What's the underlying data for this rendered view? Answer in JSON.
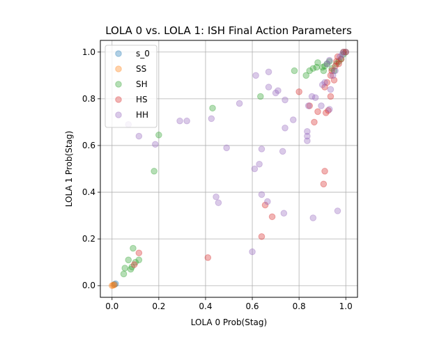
{
  "chart_data": {
    "type": "scatter",
    "title": "LOLA 0 vs. LOLA 1: ISH Final Action Parameters",
    "xlabel": "LOLA 0 Prob(Stag)",
    "ylabel": "LOLA 1 Prob(Stag)",
    "xlim": [
      -0.05,
      1.05
    ],
    "ylim": [
      -0.05,
      1.05
    ],
    "xticks": [
      0.0,
      0.2,
      0.4,
      0.6,
      0.8,
      1.0
    ],
    "yticks": [
      0.0,
      0.2,
      0.4,
      0.6,
      0.8,
      1.0
    ],
    "xtick_labels": [
      "0.0",
      "0.2",
      "0.4",
      "0.6",
      "0.8",
      "1.0"
    ],
    "ytick_labels": [
      "0.0",
      "0.2",
      "0.4",
      "0.6",
      "0.8",
      "1.0"
    ],
    "grid": true,
    "legend_position": "upper-left",
    "series": [
      {
        "name": "s_0",
        "color": "#1f77b4",
        "points": [
          [
            0.01,
            0.005
          ],
          [
            0.015,
            0.008
          ],
          [
            0.99,
            1.0
          ],
          [
            1.0,
            1.0
          ]
        ]
      },
      {
        "name": "SS",
        "color": "#ff7f0e",
        "points": [
          [
            0.0,
            0.0
          ],
          [
            0.005,
            0.002
          ],
          [
            0.01,
            0.004
          ]
        ]
      },
      {
        "name": "SH",
        "color": "#2ca02c",
        "points": [
          [
            0.05,
            0.05
          ],
          [
            0.055,
            0.075
          ],
          [
            0.07,
            0.11
          ],
          [
            0.08,
            0.07
          ],
          [
            0.085,
            0.08
          ],
          [
            0.09,
            0.16
          ],
          [
            0.1,
            0.1
          ],
          [
            0.115,
            0.11
          ],
          [
            0.18,
            0.49
          ],
          [
            0.2,
            0.645
          ],
          [
            0.43,
            0.76
          ],
          [
            0.635,
            0.81
          ],
          [
            0.78,
            0.92
          ],
          [
            0.83,
            0.9
          ],
          [
            0.845,
            0.92
          ],
          [
            0.86,
            0.93
          ],
          [
            0.875,
            0.935
          ],
          [
            0.88,
            0.955
          ],
          [
            0.9,
            0.935
          ],
          [
            0.905,
            0.92
          ],
          [
            0.91,
            0.94
          ],
          [
            0.92,
            0.95
          ],
          [
            0.93,
            0.96
          ],
          [
            0.94,
            0.93
          ],
          [
            0.95,
            0.92
          ],
          [
            0.96,
            0.95
          ],
          [
            0.97,
            0.96
          ],
          [
            0.98,
            0.97
          ],
          [
            0.99,
            0.99
          ]
        ]
      },
      {
        "name": "HS",
        "color": "#d62728",
        "points": [
          [
            0.095,
            0.09
          ],
          [
            0.115,
            0.14
          ],
          [
            0.41,
            0.12
          ],
          [
            0.64,
            0.21
          ],
          [
            0.655,
            0.345
          ],
          [
            0.685,
            0.295
          ],
          [
            0.8,
            0.83
          ],
          [
            0.845,
            0.77
          ],
          [
            0.865,
            0.7
          ],
          [
            0.88,
            0.745
          ],
          [
            0.905,
            0.435
          ],
          [
            0.91,
            0.49
          ],
          [
            0.91,
            0.85
          ],
          [
            0.915,
            0.74
          ],
          [
            0.92,
            0.87
          ],
          [
            0.925,
            0.75
          ],
          [
            0.935,
            0.81
          ],
          [
            0.935,
            0.9
          ],
          [
            0.94,
            0.92
          ],
          [
            0.95,
            0.88
          ],
          [
            0.955,
            0.94
          ],
          [
            0.96,
            0.96
          ],
          [
            0.965,
            0.98
          ],
          [
            0.97,
            0.95
          ],
          [
            0.98,
            0.97
          ],
          [
            0.99,
            1.0
          ],
          [
            1.0,
            1.0
          ]
        ]
      },
      {
        "name": "HH",
        "color": "#9467bd",
        "points": [
          [
            0.07,
            0.69
          ],
          [
            0.115,
            0.64
          ],
          [
            0.185,
            0.605
          ],
          [
            0.29,
            0.705
          ],
          [
            0.32,
            0.705
          ],
          [
            0.425,
            0.715
          ],
          [
            0.445,
            0.38
          ],
          [
            0.455,
            0.355
          ],
          [
            0.49,
            0.59
          ],
          [
            0.545,
            0.78
          ],
          [
            0.6,
            0.145
          ],
          [
            0.61,
            0.5
          ],
          [
            0.615,
            0.9
          ],
          [
            0.63,
            0.52
          ],
          [
            0.64,
            0.585
          ],
          [
            0.64,
            0.39
          ],
          [
            0.665,
            0.36
          ],
          [
            0.67,
            0.85
          ],
          [
            0.67,
            0.915
          ],
          [
            0.7,
            0.825
          ],
          [
            0.71,
            0.835
          ],
          [
            0.73,
            0.575
          ],
          [
            0.735,
            0.31
          ],
          [
            0.74,
            0.795
          ],
          [
            0.74,
            0.675
          ],
          [
            0.775,
            0.71
          ],
          [
            0.835,
            0.66
          ],
          [
            0.835,
            0.64
          ],
          [
            0.835,
            0.62
          ],
          [
            0.84,
            0.77
          ],
          [
            0.855,
            0.81
          ],
          [
            0.86,
            0.29
          ],
          [
            0.87,
            0.805
          ],
          [
            0.895,
            0.77
          ],
          [
            0.9,
            0.86
          ],
          [
            0.91,
            0.87
          ],
          [
            0.93,
            0.755
          ],
          [
            0.935,
            0.84
          ],
          [
            0.945,
            0.9
          ],
          [
            0.955,
            0.92
          ],
          [
            0.965,
            0.32
          ],
          [
            0.975,
            0.98
          ],
          [
            0.985,
            0.99
          ],
          [
            0.93,
            0.965
          ],
          [
            0.92,
            0.95
          ]
        ]
      }
    ]
  }
}
